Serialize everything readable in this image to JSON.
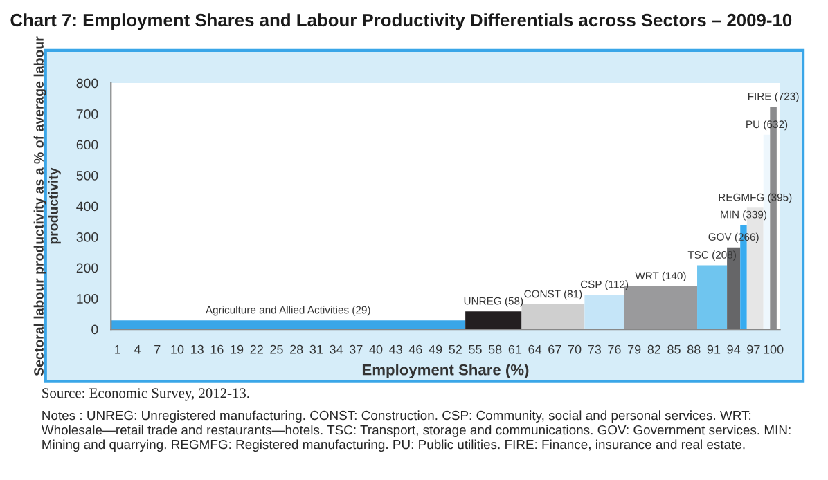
{
  "chart_data": {
    "type": "histogram",
    "title": "Chart 7: Employment Shares and Labour Productivity Differentials across Sectors – 2009-10",
    "xlabel": "Employment Share (%)",
    "ylabel": "Sectoral labour productivity as a % of average labour productivity",
    "bins": [
      0,
      53.5,
      62,
      71.5,
      77.5,
      88.5,
      93,
      95,
      96,
      98.5,
      99.5,
      100.5
    ],
    "values": [
      29,
      58,
      81,
      112,
      140,
      208,
      266,
      339,
      395,
      632,
      723
    ],
    "colors": [
      "#3aa6e8",
      "#231f20",
      "#cfcfcf",
      "#c5e5f8",
      "#9a9a9c",
      "#6fc5ef",
      "#666668",
      "#37abf0",
      "#e6e6e6",
      "#eef7fd",
      "#8b8b8d"
    ],
    "value_labels": [
      "Agriculture and Allied Activities (29)",
      "UNREG (58)",
      "CONST (81)",
      "CSP (112)",
      "WRT (140)",
      "TSC (208)",
      "GOV (266)",
      "MIN (339)",
      "REGMFG (395)",
      "PU (632)",
      "FIRE (723)"
    ],
    "xlim": [
      0,
      101
    ],
    "xticks": [
      1,
      4,
      7,
      10,
      13,
      16,
      19,
      22,
      25,
      28,
      31,
      34,
      37,
      40,
      43,
      46,
      49,
      52,
      55,
      58,
      61,
      64,
      67,
      70,
      73,
      76,
      79,
      82,
      85,
      88,
      91,
      94,
      97,
      100
    ],
    "ylim": [
      0,
      800
    ],
    "yticks": [
      0,
      100,
      200,
      300,
      400,
      500,
      600,
      700,
      800
    ],
    "grid": false,
    "legend": false,
    "annotations": [
      "Source: Economic Survey, 2012-13.",
      "Notes : UNREG: Unregistered manufacturing. CONST: Construction. CSP: Community, social and personal services. WRT: Wholesale—retail trade and restaurants—hotels. TSC: Transport, storage and communications. GOV: Government services. MIN: Mining and quarrying. REGMFG: Registered manufacturing. PU: Public utilities. FIRE: Finance, insurance and real estate."
    ]
  }
}
